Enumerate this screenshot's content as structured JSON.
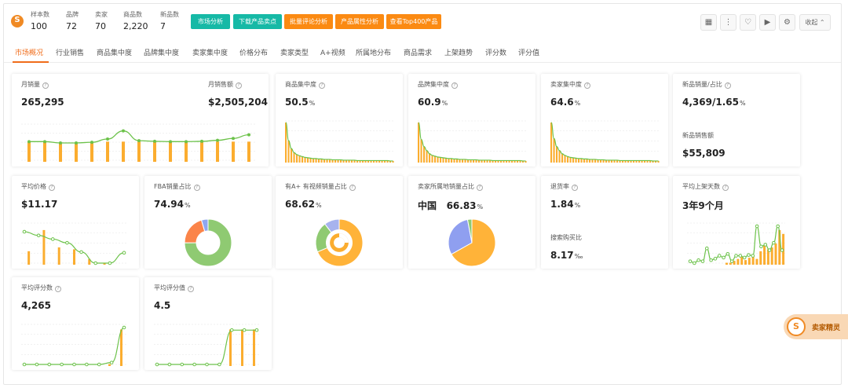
{
  "header": {
    "stats": [
      {
        "label": "样本数",
        "value": "100"
      },
      {
        "label": "品牌",
        "value": "72"
      },
      {
        "label": "卖家",
        "value": "70"
      },
      {
        "label": "商品数",
        "value": "2,220"
      },
      {
        "label": "新品数",
        "value": "7"
      }
    ],
    "buttons": [
      "市场分析",
      "下载产品卖点",
      "批量评论分析",
      "产品属性分析",
      "查看Top400产品"
    ],
    "collapse_label": "收起",
    "colors": {
      "teal": "#16b9a6",
      "orange": "#fb8a12"
    }
  },
  "tabs": [
    "市场概况",
    "行业销售",
    "商品集中度",
    "品牌集中度",
    "卖家集中度",
    "价格分布",
    "卖家类型",
    "A+视频",
    "所属地分布",
    "商品需求",
    "上架趋势",
    "评分数",
    "评分值"
  ],
  "cards": {
    "monthly": {
      "sales_title": "月销量",
      "sales_value": "265,295",
      "revenue_title": "月销售额",
      "revenue_value": "$2,505,204"
    },
    "product_conc": {
      "title": "商品集中度",
      "value": "50.5",
      "unit": "%"
    },
    "brand_conc": {
      "title": "品牌集中度",
      "value": "60.9",
      "unit": "%"
    },
    "seller_conc": {
      "title": "卖家集中度",
      "value": "64.6",
      "unit": "%"
    },
    "new_products": {
      "title": "新品销量/占比",
      "value": "4,369/1.65",
      "unit": "%",
      "sales_title": "新品销售额",
      "sales_value": "$55,809"
    },
    "avg_price": {
      "title": "平均价格",
      "value": "$11.17"
    },
    "fba": {
      "title": "FBA销量占比",
      "value": "74.94",
      "unit": "%"
    },
    "aplus": {
      "title": "有A+ 有视频销量占比",
      "value": "68.62",
      "unit": "%"
    },
    "seller_loc": {
      "title": "卖家所属地销量占比",
      "country": "中国",
      "value": "66.83",
      "unit": "%"
    },
    "returns": {
      "title": "退货率",
      "value": "1.84",
      "unit": "%",
      "search_title": "搜索购买比",
      "search_value": "8.17",
      "search_unit": "‰"
    },
    "listing_days": {
      "title": "平均上架天数",
      "value": "3年9个月"
    },
    "review_count": {
      "title": "平均评分数",
      "value": "4,265"
    },
    "review_score": {
      "title": "平均评分值",
      "value": "4.5"
    }
  },
  "float_badge": {
    "label": "卖家精灵"
  },
  "chart_data": [
    {
      "type": "bar",
      "name": "月销量",
      "values": [
        0.62,
        0.62,
        0.58,
        0.58,
        0.6,
        0.7,
        0.95,
        0.65,
        0.63,
        0.62,
        0.62,
        0.63,
        0.66,
        0.72,
        0.83
      ]
    },
    {
      "type": "bar",
      "name": "商品集中度",
      "values": [
        1.0,
        0.55,
        0.35,
        0.25,
        0.2,
        0.17,
        0.15,
        0.13,
        0.12,
        0.11,
        0.1,
        0.1,
        0.09,
        0.09,
        0.08,
        0.08,
        0.08,
        0.07,
        0.07,
        0.07,
        0.07,
        0.06,
        0.06,
        0.06,
        0.06,
        0.06,
        0.05,
        0.05,
        0.05,
        0.05,
        0.05,
        0.05,
        0.05,
        0.05,
        0.05,
        0.05,
        0.05,
        0.05,
        0.04,
        0.04
      ]
    },
    {
      "type": "bar",
      "name": "品牌集中度",
      "values": [
        1.0,
        0.58,
        0.4,
        0.3,
        0.22,
        0.18,
        0.16,
        0.14,
        0.13,
        0.12,
        0.11,
        0.1,
        0.1,
        0.09,
        0.09,
        0.08,
        0.08,
        0.08,
        0.07,
        0.07,
        0.07,
        0.07,
        0.06,
        0.06,
        0.06,
        0.06,
        0.06,
        0.05,
        0.05,
        0.05,
        0.05,
        0.05,
        0.05,
        0.05,
        0.05,
        0.05,
        0.05,
        0.05,
        0.04,
        0.04
      ]
    },
    {
      "type": "bar",
      "name": "卖家集中度",
      "values": [
        1.0,
        0.6,
        0.4,
        0.3,
        0.22,
        0.18,
        0.15,
        0.13,
        0.12,
        0.11,
        0.1,
        0.1,
        0.09,
        0.09,
        0.08,
        0.08,
        0.08,
        0.07,
        0.07,
        0.07,
        0.06,
        0.06,
        0.06,
        0.06,
        0.06,
        0.05,
        0.05,
        0.05,
        0.05,
        0.05,
        0.05,
        0.05,
        0.05,
        0.05,
        0.05,
        0.05,
        0.05,
        0.04,
        0.04,
        0.04
      ]
    },
    {
      "type": "bar",
      "name": "平均价格",
      "bars": [
        0.35,
        0.9,
        0.45,
        0.4,
        0.15,
        0.05,
        0.0
      ],
      "line": [
        0.85,
        0.75,
        0.65,
        0.55,
        0.3,
        0.0,
        0.0,
        0.28
      ]
    },
    {
      "type": "pie",
      "name": "FBA销量占比",
      "slices": [
        {
          "value": 74.94,
          "color": "#8fca72"
        },
        {
          "value": 20.5,
          "color": "#fb8449"
        },
        {
          "value": 4.56,
          "color": "#8ea6ef"
        }
      ]
    },
    {
      "type": "pie",
      "name": "有A+ 有视频销量占比",
      "slices": [
        {
          "value": 68.62,
          "color": "#ffb339"
        },
        {
          "value": 21.0,
          "color": "#8fca72"
        },
        {
          "value": 10.38,
          "color": "#a7b3ee"
        }
      ]
    },
    {
      "type": "pie",
      "name": "卖家所属地销量占比",
      "slices": [
        {
          "value": 66.83,
          "color": "#ffb339"
        },
        {
          "value": 30.2,
          "color": "#8f9ff0"
        },
        {
          "value": 2.97,
          "color": "#8fca72"
        }
      ]
    },
    {
      "type": "bar",
      "name": "平均上架天数",
      "bars": [
        0.0,
        0.0,
        0.0,
        0.0,
        0.0,
        0.0,
        0.0,
        0.0,
        0.0,
        0.0,
        0.05,
        0.05,
        0.1,
        0.15,
        0.2,
        0.12,
        0.18,
        0.22,
        0.15,
        0.35,
        0.5,
        0.4,
        0.45,
        0.55,
        0.9,
        0.8
      ],
      "line": [
        0.05,
        0.0,
        0.08,
        0.05,
        0.4,
        0.08,
        0.12,
        0.2,
        0.15,
        0.25,
        0.05,
        0.2,
        0.2,
        0.15,
        0.22,
        0.2,
        1.0,
        0.45,
        0.5,
        0.35,
        0.55,
        1.0,
        0.35
      ]
    },
    {
      "type": "bar",
      "name": "平均评分数",
      "bars": [
        0,
        0,
        0,
        0,
        0,
        0,
        0,
        0.05,
        0.95
      ],
      "line": [
        0,
        0,
        0,
        0,
        0,
        0,
        0,
        0.05,
        1.0
      ]
    },
    {
      "type": "bar",
      "name": "平均评分值",
      "bars": [
        0,
        0,
        0,
        0,
        0,
        0,
        0.95,
        0.95,
        0.95
      ],
      "line": [
        0,
        0,
        0,
        0,
        0,
        0,
        0.93,
        0.93,
        0.93
      ]
    }
  ]
}
